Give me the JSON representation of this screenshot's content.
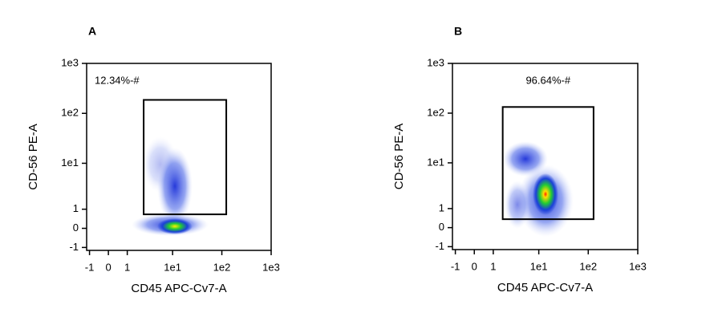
{
  "chart_data": [
    {
      "type": "gated-density",
      "title": "A",
      "x_label": "CD45 APC-Cv7-A",
      "y_label": "CD-56 PE-A",
      "scale": "asinh",
      "xlim": [
        -1.2,
        1000
      ],
      "ylim": [
        -1.2,
        1000
      ],
      "xticks": [
        {
          "value": -1,
          "label": "-1"
        },
        0,
        1,
        {
          "value": 10,
          "label": "1e1"
        },
        {
          "value": 100,
          "label": "1e2"
        },
        {
          "value": 1000,
          "label": "1e3"
        }
      ],
      "yticks": [
        {
          "value": -1,
          "label": "-1"
        },
        0,
        1,
        {
          "value": 10,
          "label": "1e1"
        },
        {
          "value": 100,
          "label": "1e2"
        },
        {
          "value": 1000,
          "label": "1e3"
        }
      ],
      "gate": {
        "x": [
          2.5,
          123
        ],
        "y": [
          0.69,
          186
        ]
      },
      "gate_label": "12.34%-#"
    },
    {
      "type": "gated-density",
      "title": "B",
      "x_label": "CD45 APC-Cv7-A",
      "y_label": "CD-56 PE-A",
      "scale": "asinh",
      "xlim": [
        -1.2,
        1000
      ],
      "ylim": [
        -1.2,
        1000
      ],
      "xticks": [
        {
          "value": -1,
          "label": "-1"
        },
        0,
        1,
        {
          "value": 10,
          "label": "1e1"
        },
        {
          "value": 100,
          "label": "1e2"
        },
        {
          "value": 1000,
          "label": "1e3"
        }
      ],
      "yticks": [
        {
          "value": -1,
          "label": "-1"
        },
        0,
        1,
        {
          "value": 10,
          "label": "1e1"
        },
        {
          "value": 100,
          "label": "1e2"
        },
        {
          "value": 1000,
          "label": "1e3"
        }
      ],
      "gate": {
        "x": [
          1.74,
          128
        ],
        "y": [
          0.4,
          133
        ]
      },
      "gate_label": "96.64%-#"
    }
  ]
}
